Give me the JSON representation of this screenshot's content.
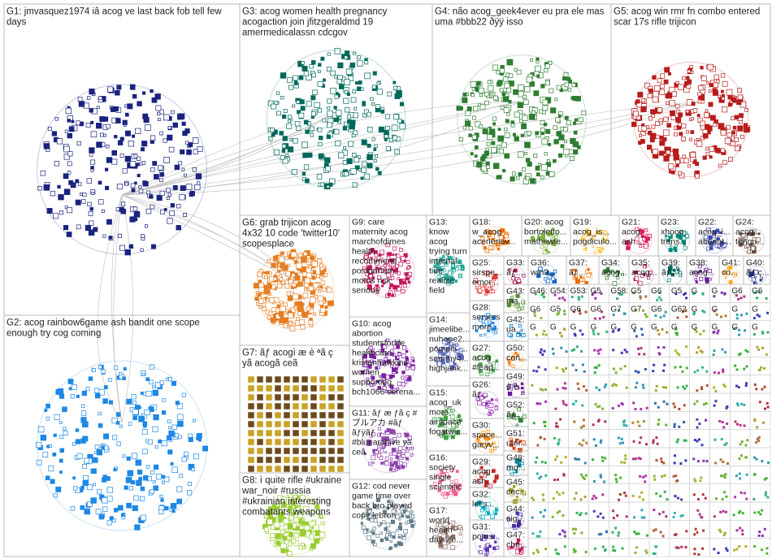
{
  "groups": [
    {
      "lines": [
        "G1: jmvasquez1974 iâ acog ve last back fob tell few",
        "days"
      ],
      "color": "#1a237e"
    },
    {
      "lines": [
        "G2: acog rainbow6game ash bandit one scope",
        "enough try cog coming"
      ],
      "color": "#1e88e5"
    },
    {
      "lines": [
        "G3: acog women health pregnancy",
        "acogaction join jfitzgeraldmd 19",
        "amermedicalassn cdcgov"
      ],
      "color": "#00695c"
    },
    {
      "lines": [
        "G4: não acog_geek4ever eu pra ele mas",
        "uma #bbb22 ðÿÿ isso"
      ],
      "color": "#2e7d32"
    },
    {
      "lines": [
        "G5: acog win rmr fn combo entered",
        "scar 17s rifle trijicon"
      ],
      "color": "#b71c1c"
    },
    {
      "lines": [
        "G6: grab trijicon acog",
        "4x32 10 code 'twitter10'",
        "scopesplace"
      ],
      "color": "#e67e22"
    },
    {
      "lines": [
        "G7: ãƒ acogì æ è ªã ç",
        "yã acogã ceã"
      ],
      "color": "#c9a227"
    },
    {
      "lines": [
        "G8: ì quite rifle #ukraine",
        "war_noir #russia",
        "#ukrainian interesting",
        "combatants weapons"
      ],
      "color": "#9acd32"
    },
    {
      "lines": [
        "G9: care",
        "maternity acog",
        "marchofdimes",
        "health",
        "recommend",
        "postpartum",
        "moms risk",
        "serious"
      ],
      "color": "#c2185b"
    },
    {
      "lines": [
        "G10: acog",
        "abortion",
        "studentsforlife",
        "healthcare",
        "kristanhawkins",
        "women",
        "supporting",
        "bch1066 serena..."
      ],
      "color": "#7b1fa2"
    },
    {
      "lines": [
        "G11: ãƒ æ ƒã ç #",
        "ブルアカ #ãƒ",
        "ãƒÿãƒ",
        "#bluearchive yã",
        "ceã"
      ],
      "color": "#8e44ad"
    },
    {
      "lines": [
        "G12: cod never",
        "game time over",
        "back bro played",
        "copy lebron"
      ],
      "color": "#607d8b"
    },
    {
      "lines": [
        "G13:",
        "know",
        "acog",
        "trying turn",
        "internal",
        "tide",
        "realize",
        "field"
      ],
      "color": "#26a69a"
    },
    {
      "lines": [
        "G14:",
        "jimeelibe...",
        "nuhope2...",
        "pompili_...",
        "sammy4...",
        "highjank..."
      ],
      "color": "#5c6bc0"
    },
    {
      "lines": [
        "G15:",
        "acog_uk",
        "more",
        "airspace",
        "fogatwic..."
      ],
      "color": "#43a047"
    },
    {
      "lines": [
        "G16:",
        "society",
        "single",
        "scientific"
      ],
      "color": "#f06292"
    },
    {
      "lines": [
        "G17:",
        "world",
        "health",
        "day life..."
      ],
      "color": "#8d6e63"
    },
    {
      "lines": [
        "G18:",
        "w_acog",
        "acerlenov..."
      ],
      "color": "#ef6c00"
    },
    {
      "lines": [
        "G20: acog",
        "bortoletto...",
        "mathewle..."
      ],
      "color": "#7cb342"
    },
    {
      "lines": [
        "G19:",
        "acog_is...",
        "pogdiculo..."
      ],
      "color": "#fbc02d"
    },
    {
      "lines": [
        "G21:",
        "acog",
        "ash..."
      ],
      "color": "#d81b60"
    },
    {
      "lines": [
        "G23:",
        "xhoop",
        "trans..."
      ],
      "color": "#00897b"
    },
    {
      "lines": [
        "G22:",
        "acog_i...",
        "abedot..."
      ],
      "color": "#3949ab"
    },
    {
      "lines": [
        "G24:",
        "acog...",
        "tengu..."
      ],
      "color": "#6d4c41"
    },
    {
      "lines": [
        "G25:",
        "sirspe...",
        "emor..."
      ],
      "color": "#e53935"
    },
    {
      "lines": [
        "G28:",
        "servers",
        "more..."
      ],
      "color": "#1e88e5"
    },
    {
      "lines": [
        "G27:",
        "acog",
        "#lead..."
      ],
      "color": "#43a047"
    },
    {
      "lines": [
        "G26:",
        "ãƒ..."
      ],
      "color": "#8e24aa"
    },
    {
      "lines": [
        "G30:",
        "space...",
        "garyv..."
      ],
      "color": "#fb8c00"
    },
    {
      "lines": [
        "G29:",
        "acog",
        "ash..."
      ],
      "color": "#c62828"
    },
    {
      "lines": [
        "G32:",
        "let's..."
      ],
      "color": "#00acc1"
    },
    {
      "lines": [
        "G31:",
        "potus..."
      ],
      "color": "#5e35b1"
    },
    {
      "lines": [
        "G33:",
        "ãƒ..."
      ],
      "color": "#ad1457"
    },
    {
      "lines": [
        "G43:",
        "ma..."
      ],
      "color": "#558b2f"
    },
    {
      "lines": [
        "G42:",
        "ua..."
      ],
      "color": "#0277bd"
    },
    {
      "lines": [
        "G50:",
        "con..."
      ],
      "color": "#f57f17"
    },
    {
      "lines": [
        "G49:",
        "è è..."
      ],
      "color": "#6a1b9a"
    },
    {
      "lines": [
        "G52:",
        "ãƒ..."
      ],
      "color": "#2e7d32"
    },
    {
      "lines": [
        "G51:",
        "uter..."
      ],
      "color": "#d84315"
    },
    {
      "lines": [
        "G48:",
        "mo..."
      ],
      "color": "#00838f"
    },
    {
      "lines": [
        "G45:",
        "cec..."
      ],
      "color": "#9e9d24"
    },
    {
      "lines": [
        "G44:",
        "sig..."
      ],
      "color": "#4527a0"
    },
    {
      "lines": [
        "G47:",
        "chri..."
      ],
      "color": "#c2185b"
    },
    {
      "lines": [
        "G36:",
        "wm3..."
      ],
      "color": "#1565c0"
    },
    {
      "lines": [
        "G37:",
        "ãƒ..."
      ],
      "color": "#ef6c00"
    },
    {
      "lines": [
        "G34:",
        "acog..."
      ],
      "color": "#2e7d32"
    },
    {
      "lines": [
        "G35:",
        "acog..."
      ],
      "color": "#ad1457"
    },
    {
      "lines": [
        "G39:",
        "ãƒ..."
      ],
      "color": "#00695c"
    },
    {
      "lines": [
        "G38:",
        "acog..."
      ],
      "color": "#6a1b9a"
    },
    {
      "lines": [
        "G41:",
        "co..."
      ],
      "color": "#f9a825"
    },
    {
      "lines": [
        "G40:",
        "ãƒ ç..."
      ],
      "color": "#283593"
    }
  ],
  "minor_labels": [
    "G46:",
    "G54:",
    "G53:",
    "G5",
    "G58:",
    "G5",
    "G6",
    "G5",
    "G",
    "G",
    "G6",
    "G6",
    "G6",
    "G5",
    "G6",
    "G6",
    "G7",
    "G7",
    "G6",
    "G62",
    "G",
    "G",
    "G",
    "G",
    "G",
    "G",
    "G",
    "G",
    "G",
    "G",
    "G",
    "G",
    "G",
    "G",
    "G",
    "G"
  ]
}
